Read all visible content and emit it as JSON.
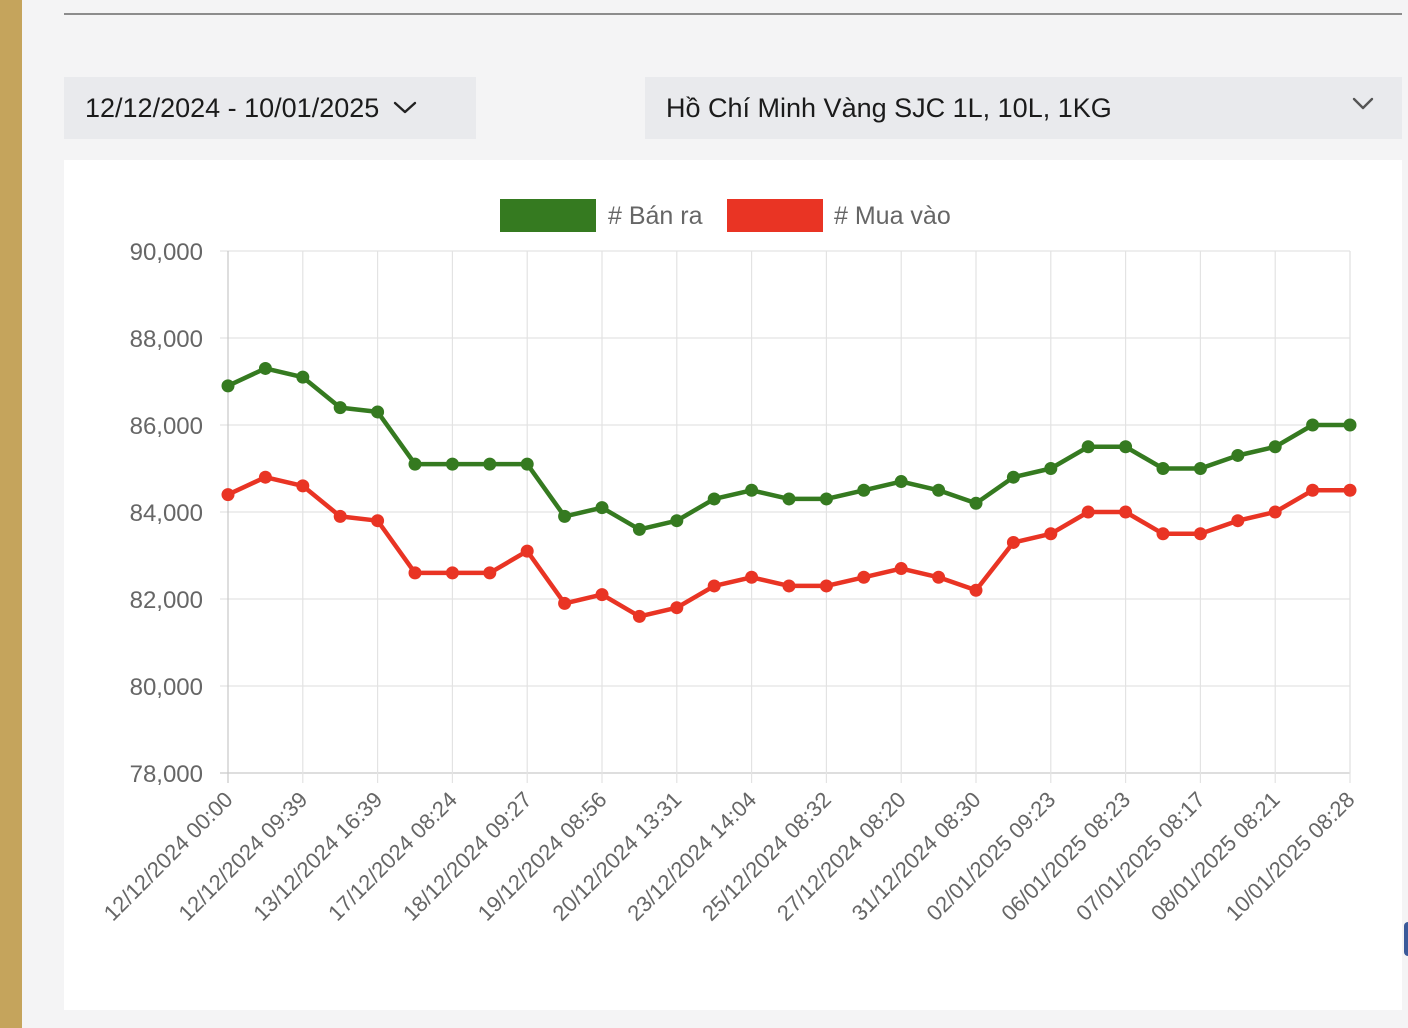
{
  "filters": {
    "date_range": "12/12/2024 - 10/01/2025",
    "location_product": "Hồ Chí Minh Vàng SJC 1L, 10L, 1KG"
  },
  "icons": {
    "date_dropdown": "chevron-down-icon",
    "location_dropdown": "chevron-down-icon"
  },
  "chart_data": {
    "type": "line",
    "title": "",
    "xlabel": "",
    "ylabel": "",
    "ylim": [
      78000,
      90000
    ],
    "yticks": [
      90000,
      88000,
      86000,
      84000,
      82000,
      80000,
      78000
    ],
    "ytick_labels": [
      "90,000",
      "88,000",
      "86,000",
      "84,000",
      "82,000",
      "80,000",
      "78,000"
    ],
    "grid": true,
    "legend_position": "top-center",
    "x_tick_labels": [
      "12/12/2024 00:00",
      "12/12/2024 09:39",
      "13/12/2024 16:39",
      "17/12/2024 08:24",
      "18/12/2024 09:27",
      "19/12/2024 08:56",
      "20/12/2024 13:31",
      "23/12/2024 14:04",
      "25/12/2024 08:32",
      "27/12/2024 08:20",
      "31/12/2024 08:30",
      "02/01/2025 09:23",
      "06/01/2025 08:23",
      "07/01/2025 08:17",
      "08/01/2025 08:21",
      "10/01/2025 08:28"
    ],
    "point_count": 31,
    "series": [
      {
        "name": "# Bán ra",
        "color": "#357a20",
        "values": [
          86900,
          87300,
          87100,
          86400,
          86300,
          85100,
          85100,
          85100,
          85100,
          83900,
          84100,
          83600,
          83800,
          84300,
          84500,
          84300,
          84300,
          84500,
          84700,
          84500,
          84200,
          84800,
          85000,
          85500,
          85500,
          85000,
          85000,
          85300,
          85500,
          86000,
          86000
        ]
      },
      {
        "name": "# Mua vào",
        "color": "#e93424",
        "values": [
          84400,
          84800,
          84600,
          83900,
          83800,
          82600,
          82600,
          82600,
          83100,
          81900,
          82100,
          81600,
          81800,
          82300,
          82500,
          82300,
          82300,
          82500,
          82700,
          82500,
          82200,
          83300,
          83500,
          84000,
          84000,
          83500,
          83500,
          83800,
          84000,
          84500,
          84500
        ]
      }
    ]
  }
}
